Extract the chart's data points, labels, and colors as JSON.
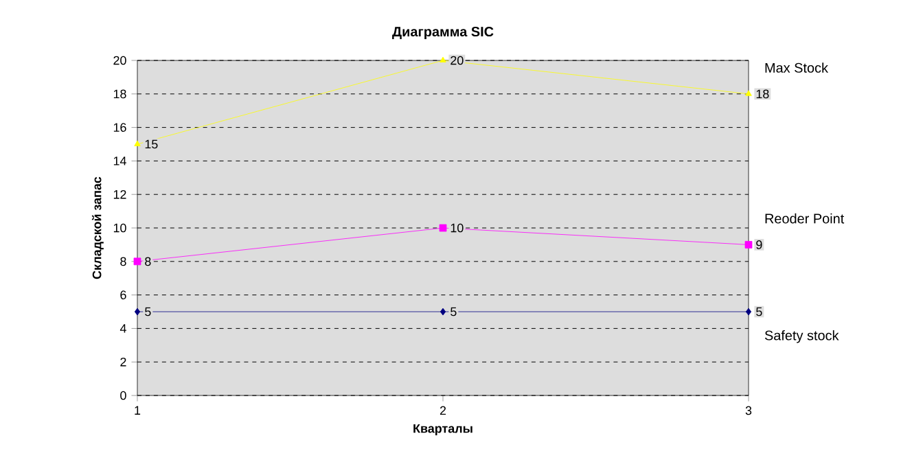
{
  "chart_data": {
    "type": "line",
    "title": "Диаграмма SIC",
    "xlabel": "Кварталы",
    "ylabel": "Складской запас",
    "x": [
      1,
      2,
      3
    ],
    "xlim": [
      1,
      3
    ],
    "xticks": [
      1,
      2,
      3
    ],
    "ylim": [
      0,
      20
    ],
    "yticks": [
      0,
      2,
      4,
      6,
      8,
      10,
      12,
      14,
      16,
      18,
      20
    ],
    "grid": "y",
    "data_labels": true,
    "line_style": "solid",
    "series": [
      {
        "name": "Max Stock",
        "color": "#ffff00",
        "marker": "triangle",
        "values": [
          15,
          20,
          18
        ]
      },
      {
        "name": "Reoder Point",
        "color": "#ff00ff",
        "marker": "square",
        "values": [
          8,
          10,
          9
        ]
      },
      {
        "name": "Safety stock",
        "color": "#000080",
        "marker": "diamond",
        "values": [
          5,
          5,
          5
        ]
      }
    ]
  }
}
